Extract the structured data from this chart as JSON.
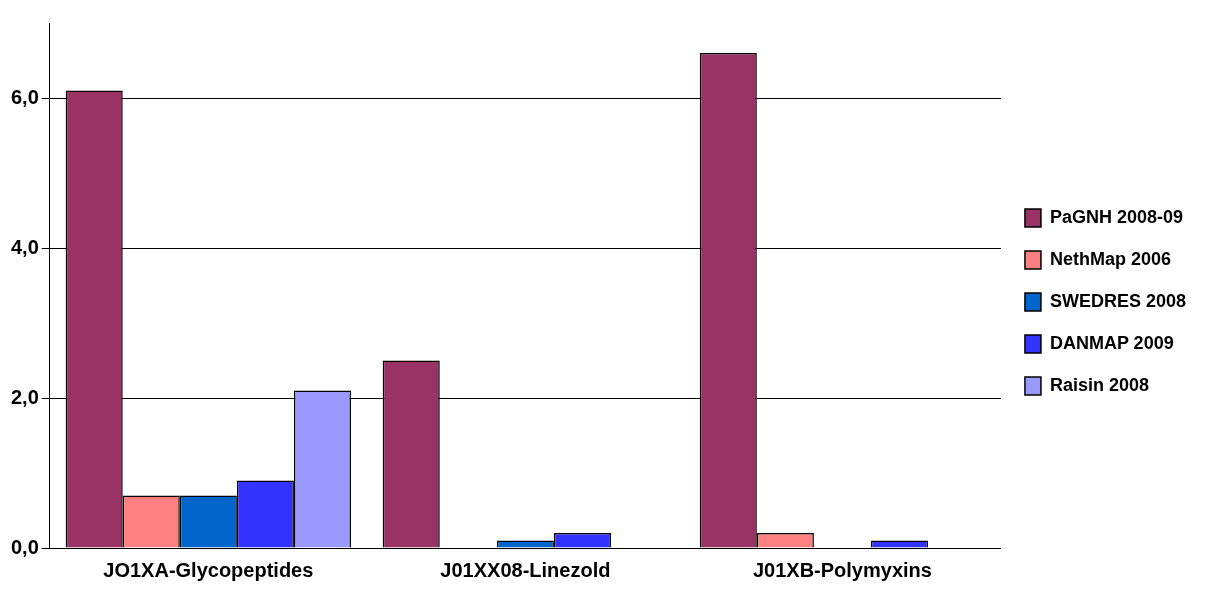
{
  "chart_data": {
    "type": "bar",
    "categories": [
      "JO1XA-Glycopeptides",
      "J01XX08-Linezold",
      "J01XB-Polymyxins"
    ],
    "series": [
      {
        "name": "PaGNH 2008-09",
        "color": "#993366",
        "values": [
          6.1,
          2.5,
          6.6
        ]
      },
      {
        "name": "NethMap 2006",
        "color": "#ff8080",
        "values": [
          0.7,
          null,
          0.2
        ]
      },
      {
        "name": "SWEDRES 2008",
        "color": "#0066cc",
        "values": [
          0.7,
          0.1,
          null
        ]
      },
      {
        "name": "DANMAP 2009",
        "color": "#3333ff",
        "values": [
          0.9,
          0.2,
          0.1
        ]
      },
      {
        "name": "Raisin 2008",
        "color": "#9999ff",
        "values": [
          2.1,
          null,
          null
        ]
      }
    ],
    "ylim": [
      0,
      7
    ],
    "yticks": [
      {
        "value": 0,
        "label": "0,0"
      },
      {
        "value": 2,
        "label": "2,0"
      },
      {
        "value": 4,
        "label": "4,0"
      },
      {
        "value": 6,
        "label": "6,0"
      }
    ],
    "grid": "y",
    "legend": "right"
  }
}
